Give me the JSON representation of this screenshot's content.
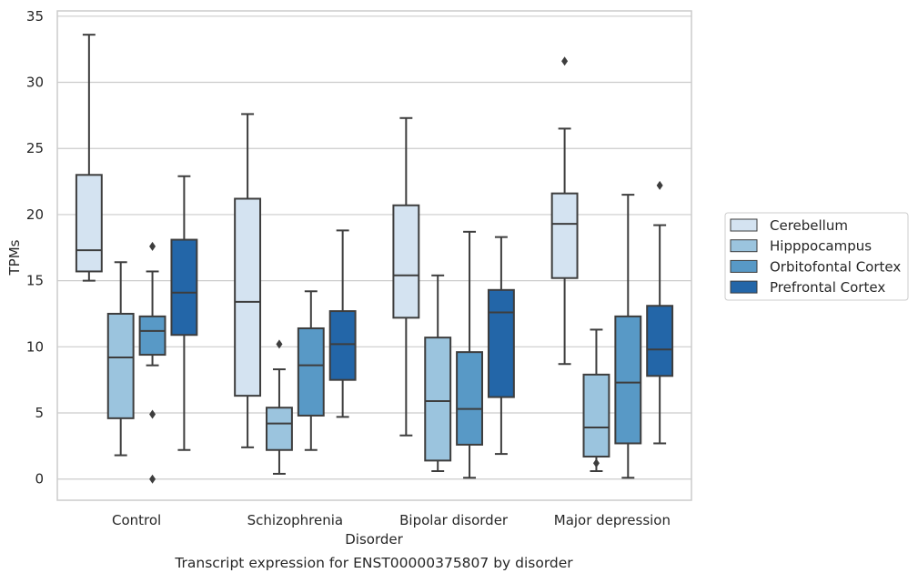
{
  "chart_data": {
    "type": "box",
    "xlabel": "Disorder",
    "ylabel": "TPMs",
    "caption": "Transcript expression for ENST00000375807 by disorder",
    "categories": [
      "Control",
      "Schizophrenia",
      "Bipolar disorder",
      "Major depression"
    ],
    "ylim": [
      -1.6,
      35.4
    ],
    "yticks": [
      0,
      5,
      10,
      15,
      20,
      25,
      30,
      35
    ],
    "grid": "horizontal",
    "legend_position": "right",
    "series": [
      {
        "name": "Cerebellum",
        "color": "#d4e3f1",
        "boxes": [
          {
            "whisker_low": 15.0,
            "q1": 15.7,
            "median": 17.3,
            "q3": 23.0,
            "whisker_high": 33.6,
            "outliers": []
          },
          {
            "whisker_low": 2.4,
            "q1": 6.3,
            "median": 13.4,
            "q3": 21.2,
            "whisker_high": 27.6,
            "outliers": []
          },
          {
            "whisker_low": 3.3,
            "q1": 12.2,
            "median": 15.4,
            "q3": 20.7,
            "whisker_high": 27.3,
            "outliers": []
          },
          {
            "whisker_low": 8.7,
            "q1": 15.2,
            "median": 19.3,
            "q3": 21.6,
            "whisker_high": 26.5,
            "outliers": [
              31.6
            ]
          }
        ]
      },
      {
        "name": "Hipppocampus",
        "color": "#9bc4de",
        "boxes": [
          {
            "whisker_low": 1.8,
            "q1": 4.6,
            "median": 9.2,
            "q3": 12.5,
            "whisker_high": 16.4,
            "outliers": []
          },
          {
            "whisker_low": 0.4,
            "q1": 2.2,
            "median": 4.2,
            "q3": 5.4,
            "whisker_high": 8.3,
            "outliers": [
              10.2
            ]
          },
          {
            "whisker_low": 0.6,
            "q1": 1.4,
            "median": 5.9,
            "q3": 10.7,
            "whisker_high": 15.4,
            "outliers": []
          },
          {
            "whisker_low": 0.6,
            "q1": 1.7,
            "median": 3.9,
            "q3": 7.9,
            "whisker_high": 11.3,
            "outliers": [
              1.2
            ]
          }
        ]
      },
      {
        "name": "Orbitofontal Cortex",
        "color": "#5899c6",
        "boxes": [
          {
            "whisker_low": 8.6,
            "q1": 9.4,
            "median": 11.2,
            "q3": 12.3,
            "whisker_high": 15.7,
            "outliers": [
              17.6,
              4.9,
              0.0
            ]
          },
          {
            "whisker_low": 2.2,
            "q1": 4.8,
            "median": 8.6,
            "q3": 11.4,
            "whisker_high": 14.2,
            "outliers": []
          },
          {
            "whisker_low": 0.1,
            "q1": 2.6,
            "median": 5.3,
            "q3": 9.6,
            "whisker_high": 18.7,
            "outliers": []
          },
          {
            "whisker_low": 0.1,
            "q1": 2.7,
            "median": 7.3,
            "q3": 12.3,
            "whisker_high": 21.5,
            "outliers": []
          }
        ]
      },
      {
        "name": "Prefrontal Cortex",
        "color": "#2366a8",
        "boxes": [
          {
            "whisker_low": 2.2,
            "q1": 10.9,
            "median": 14.1,
            "q3": 18.1,
            "whisker_high": 22.9,
            "outliers": []
          },
          {
            "whisker_low": 4.7,
            "q1": 7.5,
            "median": 10.2,
            "q3": 12.7,
            "whisker_high": 18.8,
            "outliers": []
          },
          {
            "whisker_low": 1.9,
            "q1": 6.2,
            "median": 12.6,
            "q3": 14.3,
            "whisker_high": 18.3,
            "outliers": []
          },
          {
            "whisker_low": 2.7,
            "q1": 7.8,
            "median": 9.8,
            "q3": 13.1,
            "whisker_high": 19.2,
            "outliers": [
              22.2
            ]
          }
        ]
      }
    ]
  }
}
